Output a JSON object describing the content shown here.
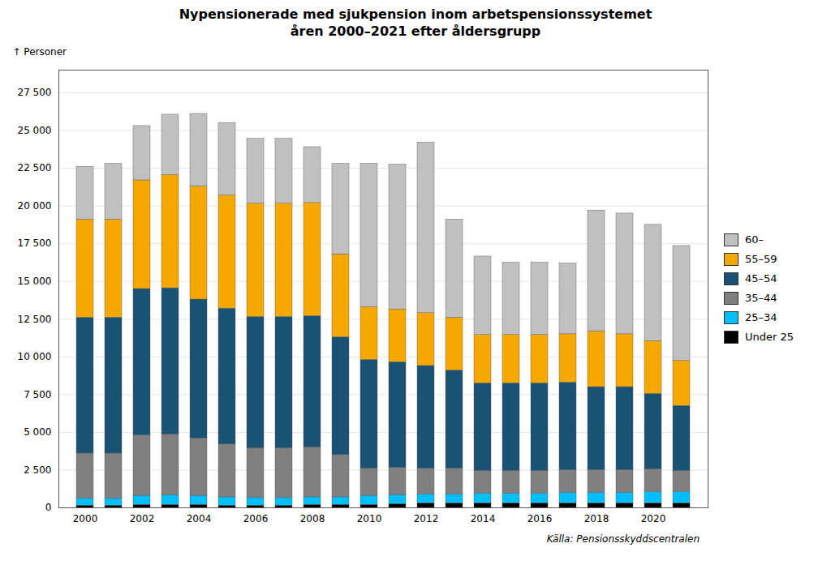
{
  "chart_data": {
    "type": "bar",
    "stacked": true,
    "title": "Nypensionerade med sjukpension inom arbetspensionssystemet\nåren 2000–2021 efter åldersgrupp",
    "ylabel": "Personer",
    "source": "Källa: Pensionsskyddscentralen",
    "categories": [
      "2000",
      null,
      "2002",
      null,
      "2004",
      null,
      "2006",
      null,
      "2008",
      null,
      "2010",
      null,
      "2012",
      null,
      "2014",
      null,
      "2016",
      null,
      "2018",
      null,
      "2020",
      null
    ],
    "series": [
      {
        "name": "Under 25",
        "color": "#000000",
        "values": [
          150,
          150,
          200,
          200,
          200,
          150,
          150,
          150,
          200,
          200,
          200,
          250,
          300,
          300,
          300,
          300,
          300,
          300,
          300,
          300,
          300,
          300
        ]
      },
      {
        "name": "25–34",
        "color": "#00bfff",
        "values": [
          450,
          450,
          600,
          650,
          600,
          550,
          500,
          500,
          500,
          500,
          600,
          600,
          600,
          600,
          650,
          650,
          650,
          700,
          700,
          700,
          750,
          750
        ]
      },
      {
        "name": "35–44",
        "color": "#808080",
        "values": [
          3000,
          3000,
          4000,
          4000,
          3800,
          3500,
          3300,
          3300,
          3300,
          2800,
          1800,
          1800,
          1700,
          1700,
          1500,
          1500,
          1500,
          1500,
          1500,
          1500,
          1500,
          1400
        ]
      },
      {
        "name": "45–54",
        "color": "#1a5276",
        "values": [
          9000,
          9000,
          9700,
          9700,
          9200,
          9000,
          8700,
          8700,
          8700,
          7800,
          7200,
          7000,
          6800,
          6500,
          5800,
          5800,
          5800,
          5800,
          5500,
          5500,
          5000,
          4300
        ]
      },
      {
        "name": "55–59",
        "color": "#f5a800",
        "values": [
          6500,
          6500,
          7200,
          7500,
          7500,
          7500,
          7500,
          7500,
          7500,
          5500,
          3500,
          3500,
          3500,
          3500,
          3200,
          3200,
          3200,
          3200,
          3700,
          3500,
          3500,
          3000
        ]
      },
      {
        "name": "60–",
        "color": "#c0c0c0",
        "values": [
          3500,
          3700,
          3600,
          4000,
          4800,
          4800,
          4300,
          4300,
          3700,
          6000,
          9500,
          9600,
          11300,
          6500,
          5200,
          4800,
          4800,
          4700,
          8000,
          8000,
          7700,
          7600
        ]
      }
    ],
    "ylim": [
      0,
      29000
    ],
    "yticks": [
      0,
      {
        "value": 2500,
        "label": "2 500"
      },
      {
        "value": 5000,
        "label": "5 000"
      },
      {
        "value": 7500,
        "label": "7 500"
      },
      {
        "value": 10000,
        "label": "10 000"
      },
      {
        "value": 12500,
        "label": "12 500"
      },
      {
        "value": 15000,
        "label": "15 000"
      },
      {
        "value": 17500,
        "label": "17 500"
      },
      {
        "value": 20000,
        "label": "20 000"
      },
      {
        "value": 22500,
        "label": "22 500"
      },
      {
        "value": 25000,
        "label": "25 000"
      },
      {
        "value": 27500,
        "label": "27 500"
      }
    ],
    "grid": true,
    "legend": "right"
  }
}
